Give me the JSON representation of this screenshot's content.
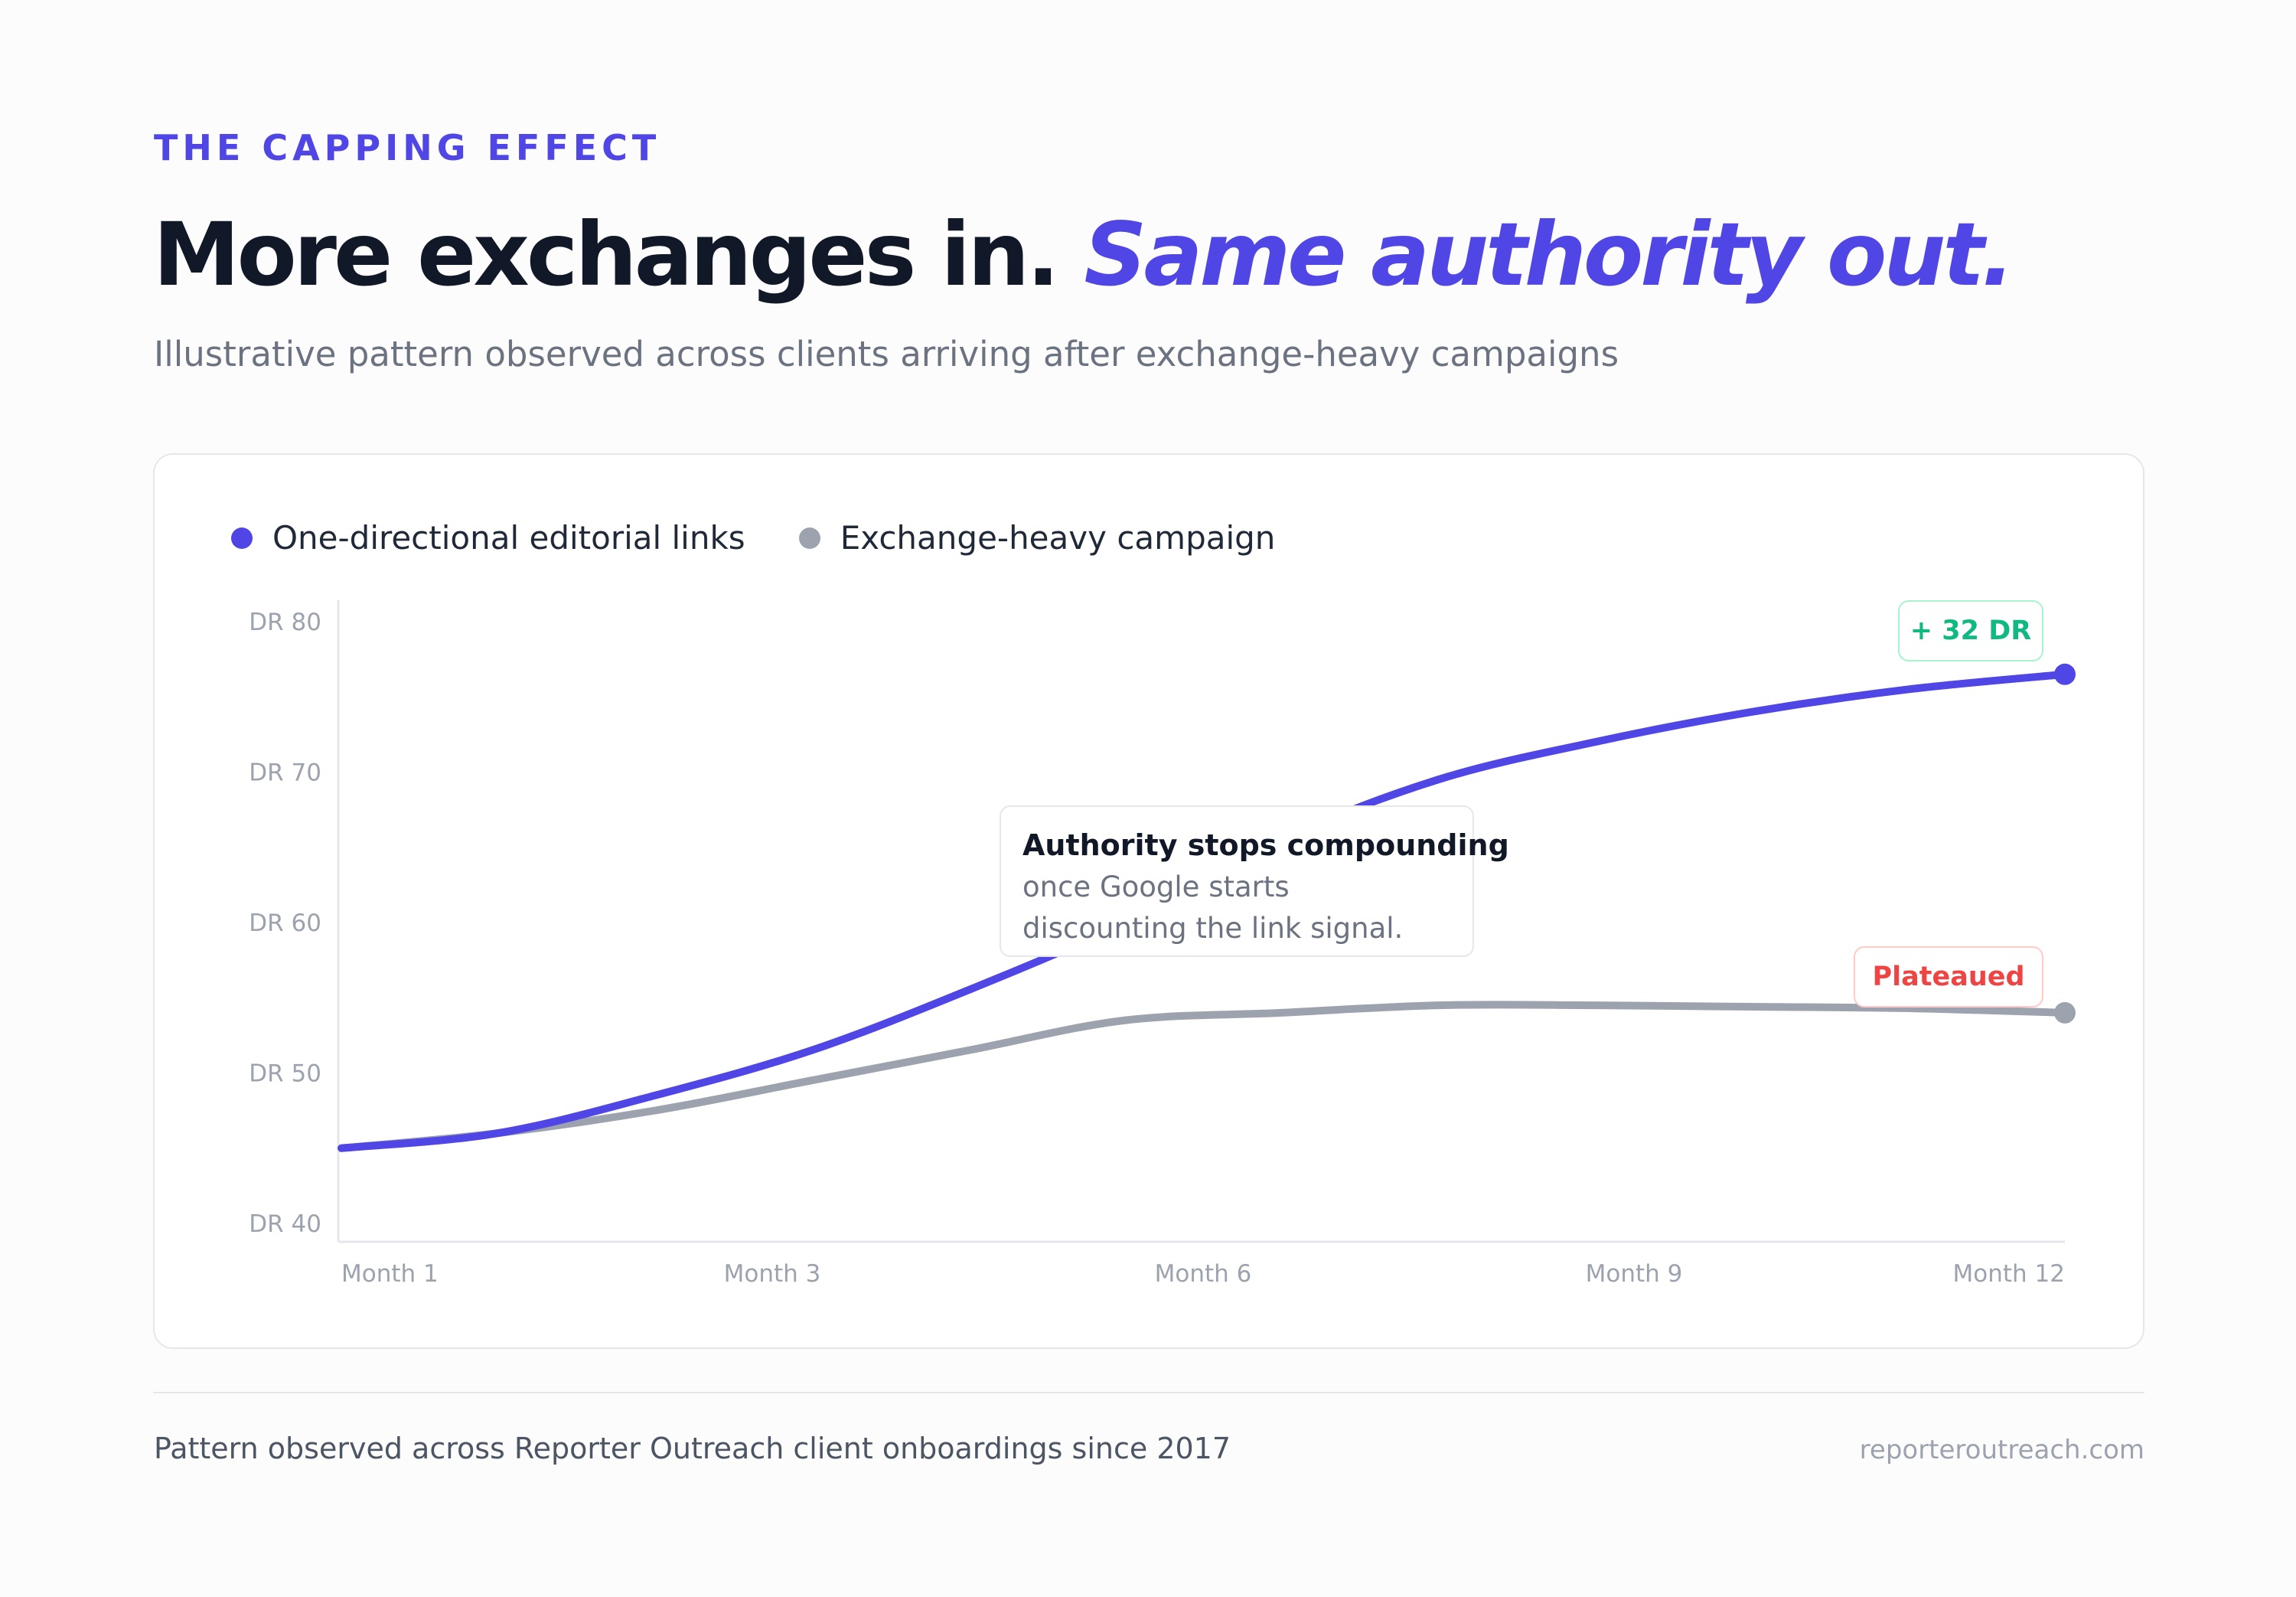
{
  "eyebrow": "THE CAPPING EFFECT",
  "headline": {
    "main": "More exchanges in. ",
    "accent": "Same authority out."
  },
  "subtitle": "Illustrative pattern observed across clients arriving after exchange-heavy campaigns",
  "colors": {
    "editorial": "#4f46e5",
    "exchange": "#9ca3af",
    "positive": "#10b981",
    "negative": "#ef4444"
  },
  "chart_data": {
    "type": "line",
    "title": "",
    "xlabel": "",
    "ylabel": "",
    "x_ticks": [
      "Month 1",
      "Month 3",
      "Month 6",
      "Month 9",
      "Month 12"
    ],
    "y_ticks": [
      "DR 80",
      "DR 70",
      "DR 60",
      "DR 50",
      "DR 40"
    ],
    "ylim": [
      40,
      80
    ],
    "xlim": [
      1,
      12
    ],
    "grid": false,
    "legend": "top-left",
    "series": [
      {
        "name": "One-directional editorial links",
        "color": "#4f46e5",
        "x": [
          1,
          2,
          3,
          4,
          5,
          6,
          7,
          8,
          9,
          10,
          11,
          12
        ],
        "values": [
          45,
          46,
          48.5,
          51.5,
          55.5,
          60,
          65.5,
          69.5,
          72,
          74,
          75.5,
          76.5
        ]
      },
      {
        "name": "Exchange-heavy campaign",
        "color": "#9ca3af",
        "x": [
          1,
          2,
          3,
          4,
          5,
          6,
          7,
          8,
          9,
          10,
          11,
          12
        ],
        "values": [
          45,
          46,
          47.5,
          49.5,
          51.5,
          53.5,
          54,
          54.5,
          54.5,
          54.4,
          54.3,
          54
        ]
      }
    ],
    "annotations": [
      {
        "title": "Authority stops compounding",
        "line1": "once Google starts",
        "line2": "discounting the link signal."
      }
    ],
    "badges": {
      "gain": "+ 32 DR",
      "plateau": "Plateaued"
    }
  },
  "footer": {
    "note": "Pattern observed across Reporter Outreach client onboardings since 2017",
    "site": "reporteroutreach.com"
  }
}
